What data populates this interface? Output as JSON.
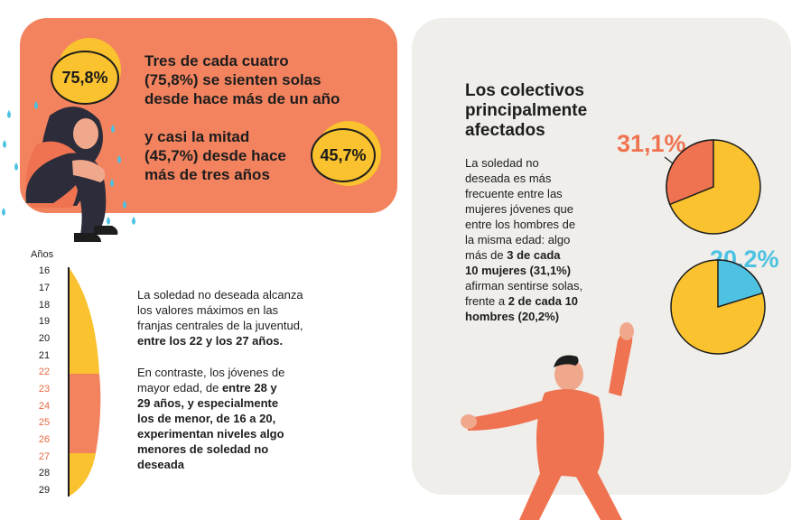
{
  "stats": {
    "pct1": "75,8%",
    "text1": [
      "Tres de cada cuatro",
      "(75,8%) se sienten solas",
      "desde hace más de un año"
    ],
    "pct2": "45,7%",
    "text2": [
      "y casi la mitad",
      "(45,7%) desde hace",
      "más de tres años"
    ]
  },
  "age_chart": {
    "unit_label": "Años",
    "ages": [
      "16",
      "17",
      "18",
      "19",
      "20",
      "21",
      "22",
      "23",
      "24",
      "25",
      "26",
      "27",
      "28",
      "29"
    ],
    "highlighted": [
      "22",
      "23",
      "24",
      "25",
      "26",
      "27"
    ]
  },
  "age_text": {
    "p1_plain": [
      "La soledad no deseada alcanza",
      "los valores máximos en las",
      "franjas centrales de la juventud,"
    ],
    "p1_bold": "entre los 22 y los 27 años.",
    "p2_plain1": [
      "En contraste, los jóvenes de"
    ],
    "p2_mixed_plain": "mayor edad, de ",
    "p2_mixed_bold": "entre 28 y",
    "p2_bold": [
      "29 años, y especialmente",
      "los de menor, de 16 a 20,",
      "experimentan niveles algo",
      "menores de soledad no",
      "deseada"
    ]
  },
  "right": {
    "heading": [
      "Los colectivos",
      "principalmente",
      "afectados"
    ],
    "body": [
      {
        "t": "La soledad no",
        "b": false
      },
      {
        "t": "deseada es más",
        "b": false
      },
      {
        "t": "frecuente entre las",
        "b": false
      },
      {
        "t": "mujeres jóvenes que",
        "b": false
      },
      {
        "t": "entre los hombres de",
        "b": false
      },
      {
        "t": "la misma edad: algo",
        "b": false
      },
      {
        "t": "más de ",
        "b": false,
        "tb": "3 de cada"
      },
      {
        "t": "10 mujeres (31,1%)",
        "b": true
      },
      {
        "t": "afirman sentirse solas,",
        "b": false
      },
      {
        "t": "frente a ",
        "b": false,
        "tb": "2 de cada 10"
      },
      {
        "t": "hombres (20,2%)",
        "b": true
      }
    ],
    "women_pct": "31,1%",
    "men_pct": "20,2%"
  },
  "colors": {
    "orange": "#f3835f",
    "yellow": "#f9c22e",
    "blue": "#4dc2e2",
    "pie_orange": "#ef7350",
    "gray_bg": "#efeeea"
  },
  "chart_data": [
    {
      "type": "pie",
      "series": [
        {
          "values": [
            31.1,
            68.9
          ]
        }
      ],
      "categories": [
        "mujeres",
        "resto"
      ]
    },
    {
      "type": "pie",
      "series": [
        {
          "values": [
            20.2,
            79.8
          ]
        }
      ],
      "categories": [
        "hombres",
        "resto"
      ]
    }
  ]
}
